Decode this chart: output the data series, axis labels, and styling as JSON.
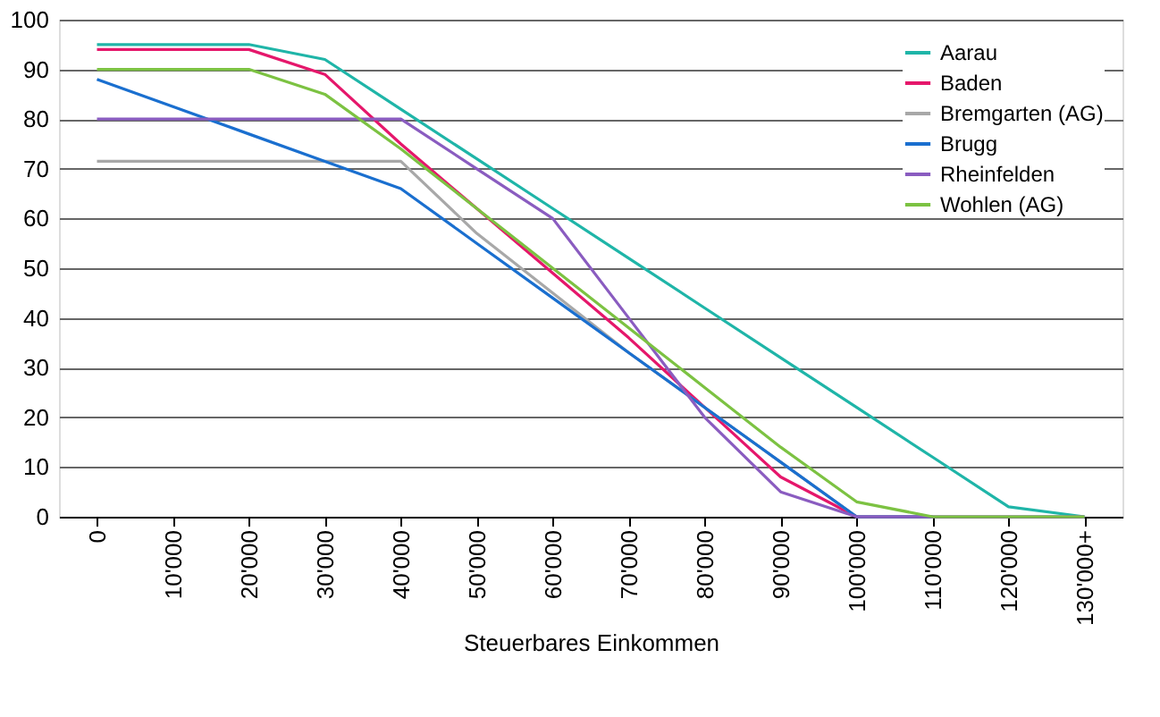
{
  "chart_data": {
    "type": "line",
    "xlabel": "Steuerbares Einkommen",
    "categories": [
      "0",
      "10'000",
      "20'000",
      "30'000",
      "40'000",
      "50'000",
      "60'000",
      "70'000",
      "80'000",
      "90'000",
      "100'000",
      "110'000",
      "120'000",
      "130'000+"
    ],
    "series": [
      {
        "name": "Aarau",
        "color": "#1fb5a8",
        "values": [
          95,
          95,
          95,
          92,
          82,
          72,
          62,
          52,
          42,
          32,
          22,
          12,
          2,
          0
        ]
      },
      {
        "name": "Baden",
        "color": "#e5176b",
        "values": [
          94,
          94,
          94,
          89,
          75,
          62,
          49,
          36,
          22,
          8,
          0,
          0,
          null,
          null
        ]
      },
      {
        "name": "Bremgarten (AG)",
        "color": "#a8a8a8",
        "values": [
          71.5,
          71.5,
          71.5,
          71.5,
          71.5,
          57,
          45,
          33,
          22,
          11,
          0,
          0,
          0,
          0
        ]
      },
      {
        "name": "Brugg",
        "color": "#1a6fcf",
        "values": [
          88,
          82.5,
          77,
          71.5,
          66,
          55,
          44,
          33,
          22,
          11,
          0,
          0,
          null,
          null
        ]
      },
      {
        "name": "Rheinfelden",
        "color": "#8a5cc0",
        "values": [
          80,
          80,
          80,
          80,
          80,
          70,
          60,
          40,
          20,
          5,
          0,
          0,
          0,
          0
        ]
      },
      {
        "name": "Wohlen (AG)",
        "color": "#7cc242",
        "values": [
          90,
          90,
          90,
          85,
          74,
          62,
          50,
          38,
          26,
          14,
          3,
          0,
          0,
          0
        ]
      }
    ],
    "ylim": [
      0,
      100
    ],
    "yticks": [
      0,
      10,
      20,
      30,
      40,
      50,
      60,
      70,
      80,
      90,
      100
    ],
    "grid": "y",
    "legend": "top right",
    "line_style": "solid",
    "marker": "none"
  }
}
